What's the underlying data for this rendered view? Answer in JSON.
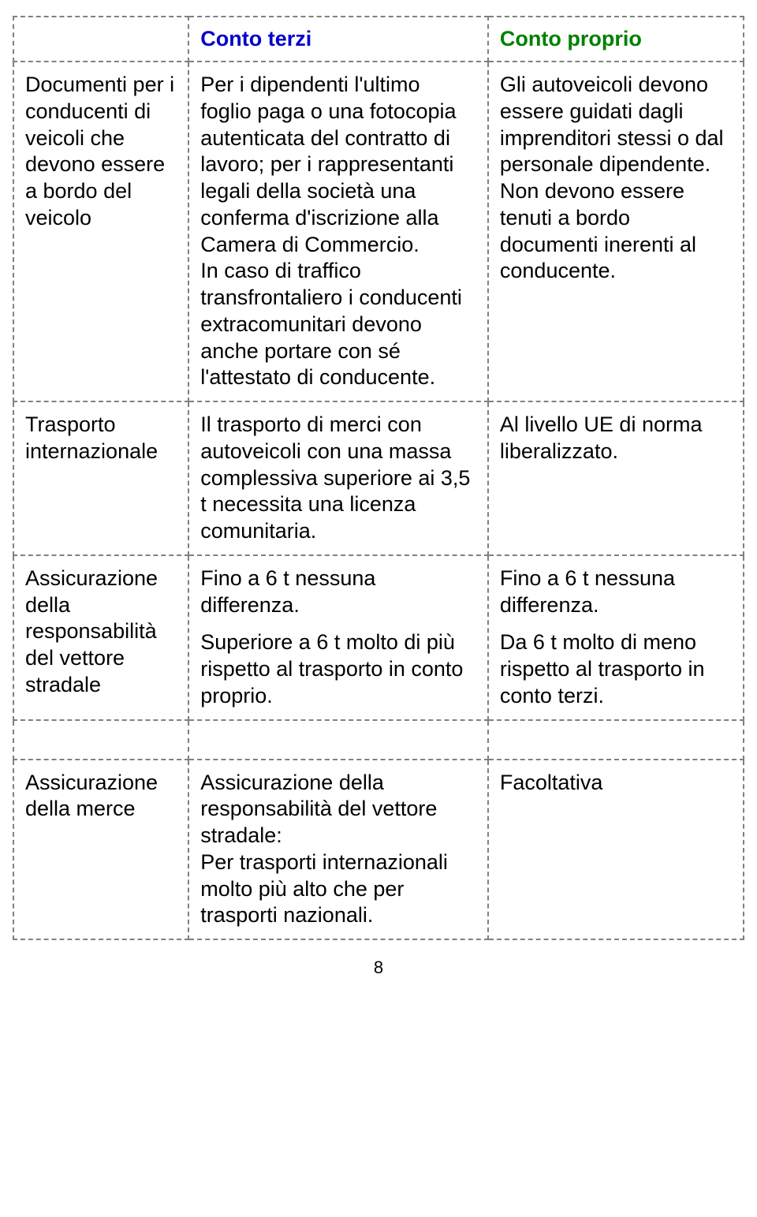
{
  "headers": {
    "col2": "Conto terzi",
    "col3": "Conto proprio"
  },
  "rows": [
    {
      "label": "Documenti per i conducenti di veicoli che devono essere a bordo del veicolo",
      "col2": "Per i dipendenti l'ultimo foglio paga o una fotocopia autenticata del contratto di lavoro; per i rappresentanti legali della società una conferma d'iscrizione alla Camera di Commercio.\nIn caso di traffico transfrontaliero i conducenti extracomunitari devono anche portare con sé l'attestato di conducente.",
      "col3": "Gli autoveicoli devono essere guidati dagli imprenditori stessi o dal personale dipendente. Non devono essere tenuti a bordo documenti inerenti al conducente."
    },
    {
      "label": "Trasporto internazionale",
      "col2": "Il trasporto di merci con autoveicoli con una massa complessiva superiore ai 3,5 t necessita una licenza comunitaria.",
      "col3": "Al livello UE di norma liberalizzato."
    },
    {
      "label": "Assicurazione della responsabilità del vettore stradale",
      "col2_paras": [
        "Fino a 6 t nessuna differenza.",
        "Superiore a 6 t molto di più rispetto al trasporto in conto proprio."
      ],
      "col3_paras": [
        "Fino a 6 t nessuna differenza.",
        "Da 6 t molto di meno rispetto al trasporto in conto terzi."
      ]
    },
    {
      "label": "Assicurazione della merce",
      "col2": "Assicurazione della responsabilità del vettore stradale:\nPer trasporti internazionali molto più alto che per trasporti nazionali.",
      "col3": "Facoltativa"
    }
  ],
  "pageNumber": "8",
  "colors": {
    "blue": "#0000cc",
    "green": "#008000",
    "border": "#808080",
    "text": "#000000",
    "background": "#ffffff"
  },
  "fontSizes": {
    "header": 27,
    "body": 27,
    "pageNum": 22
  }
}
